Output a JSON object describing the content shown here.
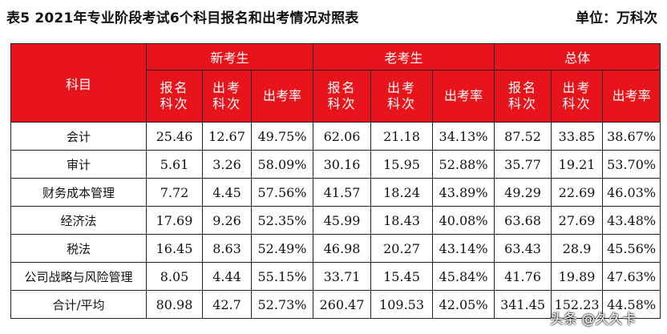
{
  "caption": "表5  2021年专业阶段考试6个科目报名和出考情况对照表",
  "unit": "单位：万科次",
  "header": {
    "subject": "科目",
    "groups": [
      "新考生",
      "老考生",
      "总体"
    ],
    "sub": [
      "报名科次",
      "出考科次",
      "出考率"
    ]
  },
  "rows": [
    {
      "name": "会计",
      "cells": [
        "25.46",
        "12.67",
        "49.75%",
        "62.06",
        "21.18",
        "34.13%",
        "87.52",
        "33.85",
        "38.67%"
      ]
    },
    {
      "name": "审计",
      "cells": [
        "5.61",
        "3.26",
        "58.09%",
        "30.16",
        "15.95",
        "52.88%",
        "35.77",
        "19.21",
        "53.70%"
      ]
    },
    {
      "name": "财务成本管理",
      "cells": [
        "7.72",
        "4.45",
        "57.56%",
        "41.57",
        "18.24",
        "43.89%",
        "49.29",
        "22.69",
        "46.03%"
      ]
    },
    {
      "name": "经济法",
      "cells": [
        "17.69",
        "9.26",
        "52.35%",
        "45.99",
        "18.43",
        "40.08%",
        "63.68",
        "27.69",
        "43.48%"
      ]
    },
    {
      "name": "税法",
      "cells": [
        "16.45",
        "8.63",
        "52.49%",
        "46.98",
        "20.27",
        "43.14%",
        "63.43",
        "28.9",
        "45.56%"
      ]
    },
    {
      "name": "公司战略与风险管理",
      "cells": [
        "8.05",
        "4.44",
        "55.15%",
        "33.71",
        "15.45",
        "45.84%",
        "41.76",
        "19.89",
        "47.63%"
      ]
    },
    {
      "name": "合计/平均",
      "cells": [
        "80.98",
        "42.7",
        "52.73%",
        "260.47",
        "109.53",
        "42.05%",
        "341.45",
        "152.23",
        "44.58%"
      ]
    }
  ],
  "watermark": "头条 @久久卡"
}
